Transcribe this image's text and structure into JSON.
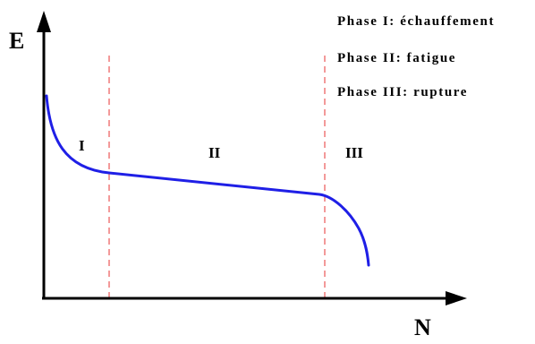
{
  "axes": {
    "y_label": "E",
    "x_label": "N"
  },
  "legend": [
    "Phase I: échauffement",
    "Phase II: fatigue",
    "Phase III: rupture"
  ],
  "phases": {
    "phase_1": "I",
    "phase_2": "II",
    "phase_3": "III"
  },
  "colors": {
    "curve": "#1f1fe6",
    "divider": "#f08080",
    "axis": "#000000"
  }
}
